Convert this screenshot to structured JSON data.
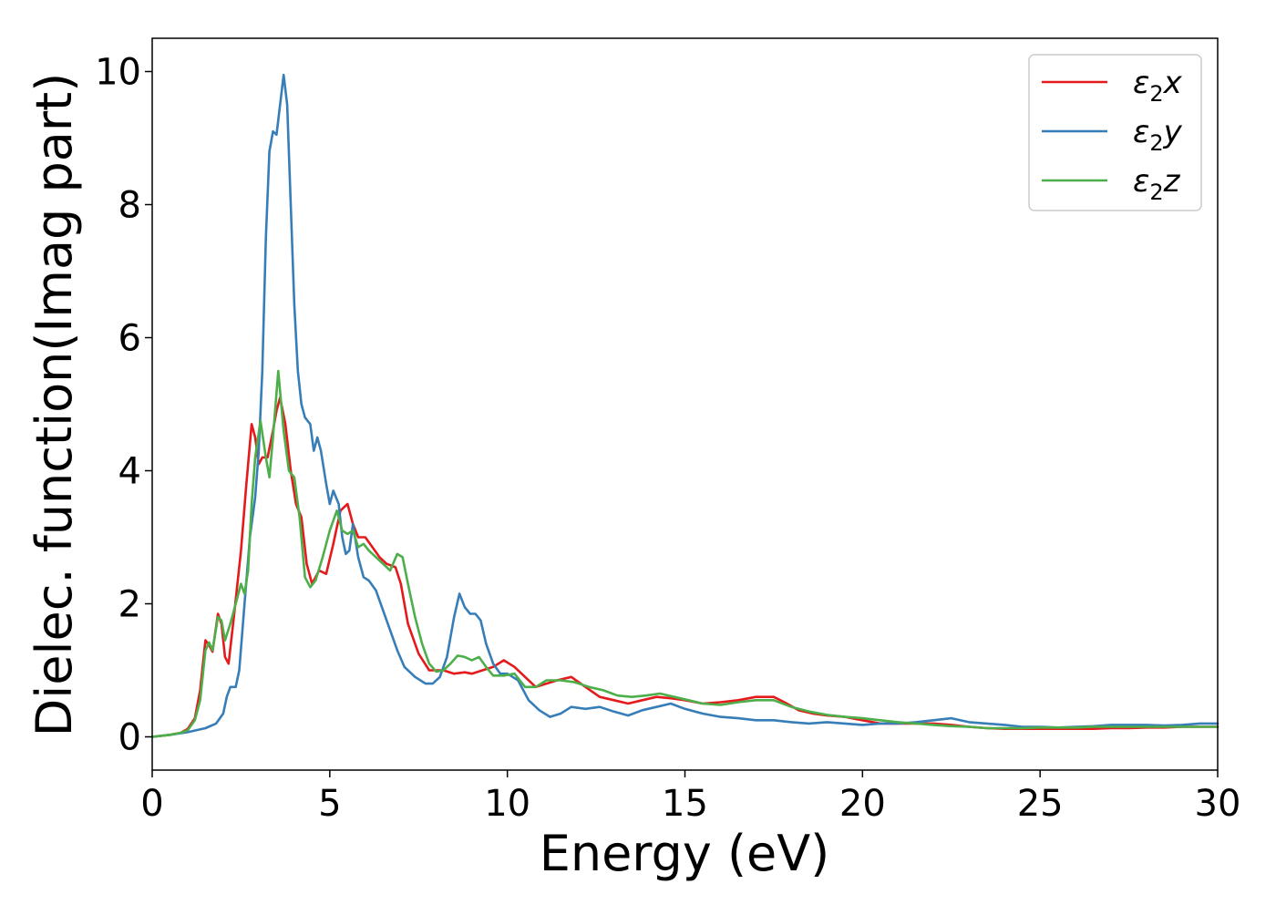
{
  "chart_data": {
    "type": "line",
    "title": "",
    "xlabel": "Energy (eV)",
    "ylabel": "Dielec. function(Imag part)",
    "xlim": [
      0,
      30
    ],
    "ylim": [
      -0.5,
      10.5
    ],
    "xticks": [
      "0",
      "5",
      "10",
      "15",
      "20",
      "25",
      "30"
    ],
    "xtick_values": [
      0,
      5,
      10,
      15,
      20,
      25,
      30
    ],
    "yticks": [
      "0",
      "2",
      "4",
      "6",
      "8",
      "10"
    ],
    "ytick_values": [
      0,
      2,
      4,
      6,
      8,
      10
    ],
    "grid": false,
    "legend_position": "top-right",
    "series": [
      {
        "name": "ε₂x",
        "legend_base": "ε",
        "legend_sub": "2",
        "legend_var": "x",
        "color": "#e41a1c",
        "points": [
          [
            0,
            0
          ],
          [
            0.5,
            0.03
          ],
          [
            0.8,
            0.06
          ],
          [
            1.0,
            0.12
          ],
          [
            1.2,
            0.28
          ],
          [
            1.35,
            0.7
          ],
          [
            1.5,
            1.45
          ],
          [
            1.6,
            1.38
          ],
          [
            1.7,
            1.28
          ],
          [
            1.85,
            1.85
          ],
          [
            1.95,
            1.7
          ],
          [
            2.05,
            1.2
          ],
          [
            2.15,
            1.1
          ],
          [
            2.3,
            1.8
          ],
          [
            2.5,
            2.8
          ],
          [
            2.65,
            3.8
          ],
          [
            2.8,
            4.7
          ],
          [
            2.9,
            4.5
          ],
          [
            3.0,
            4.1
          ],
          [
            3.1,
            4.2
          ],
          [
            3.25,
            4.2
          ],
          [
            3.4,
            4.6
          ],
          [
            3.5,
            4.9
          ],
          [
            3.6,
            5.1
          ],
          [
            3.75,
            4.7
          ],
          [
            3.9,
            4.0
          ],
          [
            4.05,
            3.5
          ],
          [
            4.2,
            3.3
          ],
          [
            4.35,
            2.6
          ],
          [
            4.5,
            2.3
          ],
          [
            4.7,
            2.5
          ],
          [
            4.9,
            2.45
          ],
          [
            5.1,
            2.9
          ],
          [
            5.3,
            3.4
          ],
          [
            5.5,
            3.5
          ],
          [
            5.65,
            3.2
          ],
          [
            5.8,
            3.0
          ],
          [
            6.0,
            3.0
          ],
          [
            6.2,
            2.85
          ],
          [
            6.4,
            2.7
          ],
          [
            6.6,
            2.6
          ],
          [
            6.85,
            2.55
          ],
          [
            7.0,
            2.3
          ],
          [
            7.2,
            1.7
          ],
          [
            7.5,
            1.25
          ],
          [
            7.8,
            1.0
          ],
          [
            8.0,
            1.0
          ],
          [
            8.2,
            1.0
          ],
          [
            8.5,
            0.95
          ],
          [
            8.8,
            0.97
          ],
          [
            9.0,
            0.95
          ],
          [
            9.3,
            1.0
          ],
          [
            9.6,
            1.05
          ],
          [
            9.9,
            1.15
          ],
          [
            10.2,
            1.05
          ],
          [
            10.5,
            0.9
          ],
          [
            10.8,
            0.75
          ],
          [
            11.1,
            0.8
          ],
          [
            11.4,
            0.85
          ],
          [
            11.8,
            0.9
          ],
          [
            12.2,
            0.75
          ],
          [
            12.6,
            0.6
          ],
          [
            13.0,
            0.55
          ],
          [
            13.4,
            0.5
          ],
          [
            13.8,
            0.55
          ],
          [
            14.2,
            0.6
          ],
          [
            14.6,
            0.58
          ],
          [
            15.0,
            0.55
          ],
          [
            15.5,
            0.5
          ],
          [
            16.0,
            0.52
          ],
          [
            16.5,
            0.55
          ],
          [
            17.0,
            0.6
          ],
          [
            17.5,
            0.6
          ],
          [
            17.8,
            0.52
          ],
          [
            18.2,
            0.4
          ],
          [
            18.6,
            0.35
          ],
          [
            19.0,
            0.32
          ],
          [
            19.5,
            0.3
          ],
          [
            20.0,
            0.25
          ],
          [
            20.5,
            0.2
          ],
          [
            21.0,
            0.2
          ],
          [
            21.5,
            0.2
          ],
          [
            22.0,
            0.2
          ],
          [
            22.5,
            0.18
          ],
          [
            23.0,
            0.15
          ],
          [
            23.5,
            0.13
          ],
          [
            24.0,
            0.12
          ],
          [
            24.5,
            0.12
          ],
          [
            25.0,
            0.12
          ],
          [
            25.5,
            0.12
          ],
          [
            26.0,
            0.12
          ],
          [
            26.5,
            0.12
          ],
          [
            27.0,
            0.13
          ],
          [
            27.5,
            0.13
          ],
          [
            28.0,
            0.14
          ],
          [
            28.5,
            0.14
          ],
          [
            29.0,
            0.15
          ],
          [
            29.5,
            0.15
          ],
          [
            30.0,
            0.15
          ]
        ]
      },
      {
        "name": "ε₂y",
        "legend_base": "ε",
        "legend_sub": "2",
        "legend_var": "y",
        "color": "#377eb8",
        "points": [
          [
            0,
            0
          ],
          [
            0.5,
            0.03
          ],
          [
            1.0,
            0.07
          ],
          [
            1.5,
            0.13
          ],
          [
            1.8,
            0.2
          ],
          [
            2.0,
            0.35
          ],
          [
            2.1,
            0.6
          ],
          [
            2.2,
            0.75
          ],
          [
            2.35,
            0.75
          ],
          [
            2.45,
            1.0
          ],
          [
            2.6,
            2.0
          ],
          [
            2.75,
            3.0
          ],
          [
            2.9,
            3.6
          ],
          [
            3.0,
            4.3
          ],
          [
            3.1,
            5.5
          ],
          [
            3.2,
            7.5
          ],
          [
            3.3,
            8.8
          ],
          [
            3.4,
            9.1
          ],
          [
            3.5,
            9.05
          ],
          [
            3.6,
            9.5
          ],
          [
            3.7,
            9.95
          ],
          [
            3.8,
            9.5
          ],
          [
            3.9,
            8.0
          ],
          [
            4.0,
            6.5
          ],
          [
            4.1,
            5.5
          ],
          [
            4.2,
            5.0
          ],
          [
            4.3,
            4.8
          ],
          [
            4.45,
            4.7
          ],
          [
            4.55,
            4.3
          ],
          [
            4.65,
            4.5
          ],
          [
            4.75,
            4.3
          ],
          [
            4.9,
            3.8
          ],
          [
            5.0,
            3.5
          ],
          [
            5.1,
            3.7
          ],
          [
            5.25,
            3.5
          ],
          [
            5.35,
            3.0
          ],
          [
            5.45,
            2.75
          ],
          [
            5.55,
            2.8
          ],
          [
            5.65,
            3.2
          ],
          [
            5.8,
            2.7
          ],
          [
            5.95,
            2.4
          ],
          [
            6.1,
            2.35
          ],
          [
            6.3,
            2.2
          ],
          [
            6.5,
            1.9
          ],
          [
            6.7,
            1.6
          ],
          [
            6.9,
            1.3
          ],
          [
            7.1,
            1.05
          ],
          [
            7.4,
            0.9
          ],
          [
            7.7,
            0.8
          ],
          [
            7.9,
            0.8
          ],
          [
            8.1,
            0.9
          ],
          [
            8.3,
            1.2
          ],
          [
            8.5,
            1.8
          ],
          [
            8.65,
            2.15
          ],
          [
            8.8,
            1.95
          ],
          [
            8.95,
            1.85
          ],
          [
            9.1,
            1.85
          ],
          [
            9.25,
            1.75
          ],
          [
            9.4,
            1.4
          ],
          [
            9.6,
            1.1
          ],
          [
            9.8,
            0.95
          ],
          [
            10.0,
            0.95
          ],
          [
            10.3,
            0.85
          ],
          [
            10.6,
            0.55
          ],
          [
            10.9,
            0.4
          ],
          [
            11.2,
            0.3
          ],
          [
            11.5,
            0.35
          ],
          [
            11.8,
            0.45
          ],
          [
            12.2,
            0.42
          ],
          [
            12.6,
            0.45
          ],
          [
            13.0,
            0.38
          ],
          [
            13.4,
            0.32
          ],
          [
            13.8,
            0.4
          ],
          [
            14.2,
            0.45
          ],
          [
            14.6,
            0.5
          ],
          [
            15.0,
            0.42
          ],
          [
            15.5,
            0.35
          ],
          [
            16.0,
            0.3
          ],
          [
            16.5,
            0.28
          ],
          [
            17.0,
            0.25
          ],
          [
            17.5,
            0.25
          ],
          [
            18.0,
            0.22
          ],
          [
            18.5,
            0.2
          ],
          [
            19.0,
            0.22
          ],
          [
            19.5,
            0.2
          ],
          [
            20.0,
            0.18
          ],
          [
            20.5,
            0.2
          ],
          [
            21.0,
            0.2
          ],
          [
            21.5,
            0.22
          ],
          [
            22.0,
            0.25
          ],
          [
            22.5,
            0.28
          ],
          [
            23.0,
            0.22
          ],
          [
            23.5,
            0.2
          ],
          [
            24.0,
            0.18
          ],
          [
            24.5,
            0.15
          ],
          [
            25.0,
            0.15
          ],
          [
            25.5,
            0.14
          ],
          [
            26.0,
            0.15
          ],
          [
            26.5,
            0.16
          ],
          [
            27.0,
            0.18
          ],
          [
            27.5,
            0.18
          ],
          [
            28.0,
            0.18
          ],
          [
            28.5,
            0.17
          ],
          [
            29.0,
            0.18
          ],
          [
            29.5,
            0.2
          ],
          [
            30.0,
            0.2
          ]
        ]
      },
      {
        "name": "ε₂z",
        "legend_base": "ε",
        "legend_sub": "2",
        "legend_var": "z",
        "color": "#4daf4a",
        "points": [
          [
            0,
            0
          ],
          [
            0.5,
            0.03
          ],
          [
            0.8,
            0.06
          ],
          [
            1.0,
            0.1
          ],
          [
            1.2,
            0.25
          ],
          [
            1.35,
            0.55
          ],
          [
            1.5,
            1.3
          ],
          [
            1.6,
            1.42
          ],
          [
            1.7,
            1.3
          ],
          [
            1.85,
            1.8
          ],
          [
            1.95,
            1.75
          ],
          [
            2.05,
            1.45
          ],
          [
            2.2,
            1.7
          ],
          [
            2.35,
            2.0
          ],
          [
            2.5,
            2.3
          ],
          [
            2.6,
            2.15
          ],
          [
            2.7,
            2.5
          ],
          [
            2.8,
            3.5
          ],
          [
            2.9,
            4.2
          ],
          [
            3.05,
            4.75
          ],
          [
            3.2,
            4.2
          ],
          [
            3.3,
            3.9
          ],
          [
            3.4,
            4.5
          ],
          [
            3.55,
            5.5
          ],
          [
            3.7,
            4.6
          ],
          [
            3.85,
            4.0
          ],
          [
            4.0,
            3.9
          ],
          [
            4.15,
            3.3
          ],
          [
            4.3,
            2.4
          ],
          [
            4.45,
            2.25
          ],
          [
            4.6,
            2.35
          ],
          [
            4.8,
            2.7
          ],
          [
            5.0,
            3.1
          ],
          [
            5.2,
            3.4
          ],
          [
            5.35,
            3.1
          ],
          [
            5.5,
            3.05
          ],
          [
            5.65,
            3.1
          ],
          [
            5.8,
            2.85
          ],
          [
            5.95,
            2.9
          ],
          [
            6.1,
            2.8
          ],
          [
            6.3,
            2.7
          ],
          [
            6.5,
            2.6
          ],
          [
            6.7,
            2.5
          ],
          [
            6.9,
            2.75
          ],
          [
            7.05,
            2.7
          ],
          [
            7.2,
            2.3
          ],
          [
            7.4,
            1.8
          ],
          [
            7.6,
            1.4
          ],
          [
            7.8,
            1.1
          ],
          [
            8.0,
            0.98
          ],
          [
            8.2,
            1.0
          ],
          [
            8.4,
            1.1
          ],
          [
            8.6,
            1.22
          ],
          [
            8.8,
            1.2
          ],
          [
            9.0,
            1.15
          ],
          [
            9.2,
            1.2
          ],
          [
            9.4,
            1.05
          ],
          [
            9.6,
            0.92
          ],
          [
            9.9,
            0.92
          ],
          [
            10.2,
            0.95
          ],
          [
            10.5,
            0.75
          ],
          [
            10.8,
            0.75
          ],
          [
            11.1,
            0.85
          ],
          [
            11.5,
            0.85
          ],
          [
            11.9,
            0.82
          ],
          [
            12.3,
            0.75
          ],
          [
            12.7,
            0.7
          ],
          [
            13.1,
            0.62
          ],
          [
            13.5,
            0.6
          ],
          [
            13.9,
            0.62
          ],
          [
            14.3,
            0.65
          ],
          [
            14.7,
            0.6
          ],
          [
            15.1,
            0.55
          ],
          [
            15.5,
            0.5
          ],
          [
            16.0,
            0.48
          ],
          [
            16.5,
            0.52
          ],
          [
            17.0,
            0.55
          ],
          [
            17.5,
            0.55
          ],
          [
            18.0,
            0.45
          ],
          [
            18.5,
            0.38
          ],
          [
            19.0,
            0.33
          ],
          [
            19.5,
            0.3
          ],
          [
            20.0,
            0.28
          ],
          [
            20.5,
            0.25
          ],
          [
            21.0,
            0.22
          ],
          [
            21.5,
            0.2
          ],
          [
            22.0,
            0.18
          ],
          [
            22.5,
            0.16
          ],
          [
            23.0,
            0.15
          ],
          [
            23.5,
            0.13
          ],
          [
            24.0,
            0.13
          ],
          [
            24.5,
            0.13
          ],
          [
            25.0,
            0.14
          ],
          [
            25.5,
            0.14
          ],
          [
            26.0,
            0.14
          ],
          [
            26.5,
            0.15
          ],
          [
            27.0,
            0.15
          ],
          [
            27.5,
            0.15
          ],
          [
            28.0,
            0.15
          ],
          [
            28.5,
            0.15
          ],
          [
            29.0,
            0.15
          ],
          [
            29.5,
            0.15
          ],
          [
            30.0,
            0.15
          ]
        ]
      }
    ]
  }
}
